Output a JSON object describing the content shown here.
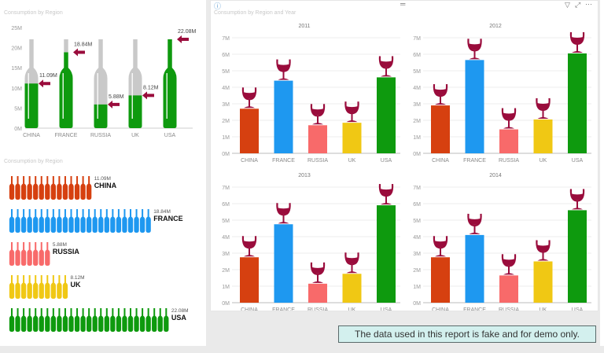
{
  "bottle_chart": {
    "title": "Consumption by Region",
    "y_ticks": [
      "0M",
      "5M",
      "10M",
      "15M",
      "20M",
      "25M"
    ],
    "categories": [
      "CHINA",
      "FRANCE",
      "RUSSIA",
      "UK",
      "USA"
    ],
    "values": [
      11.09,
      18.84,
      5.88,
      8.12,
      22.08
    ],
    "labels": [
      "11.09M",
      "18.84M",
      "5.88M",
      "8.12M",
      "22.08M"
    ],
    "fill_color": "#0e9a0e",
    "empty_color": "#c9c9c9",
    "arrow_color": "#9a0c3c"
  },
  "pictogram_chart": {
    "title": "Consumption by Region",
    "rows": [
      {
        "name": "CHINA",
        "label": "11.09M",
        "bottles": 14,
        "color": "#d64010"
      },
      {
        "name": "FRANCE",
        "label": "18.84M",
        "bottles": 24,
        "color": "#1e98f0"
      },
      {
        "name": "RUSSIA",
        "label": "5.88M",
        "bottles": 7,
        "color": "#f86a6a"
      },
      {
        "name": "UK",
        "label": "8.12M",
        "bottles": 10,
        "color": "#f0c814"
      },
      {
        "name": "USA",
        "label": "22.08M",
        "bottles": 27,
        "color": "#0e9a0e"
      }
    ]
  },
  "year_panel": {
    "title": "Consumption by Region and Year",
    "icons": {
      "info": "info-icon",
      "drag": "drag-handle-icon",
      "filter": "filter-icon",
      "focus": "focus-mode-icon",
      "more": "more-options-icon"
    }
  },
  "chart_data": [
    {
      "type": "bar",
      "title": "2011",
      "categories": [
        "CHINA",
        "FRANCE",
        "RUSSIA",
        "UK",
        "USA"
      ],
      "values": [
        2.7,
        4.4,
        1.7,
        1.85,
        4.6
      ],
      "y_ticks": [
        "0M",
        "1M",
        "2M",
        "3M",
        "4M",
        "5M",
        "6M",
        "7M"
      ],
      "ylim": [
        0,
        7
      ],
      "unit": "M",
      "grid": true
    },
    {
      "type": "bar",
      "title": "2012",
      "categories": [
        "CHINA",
        "FRANCE",
        "RUSSIA",
        "UK",
        "USA"
      ],
      "values": [
        2.9,
        5.65,
        1.45,
        2.05,
        6.05
      ],
      "y_ticks": [
        "0M",
        "1M",
        "2M",
        "3M",
        "4M",
        "5M",
        "6M",
        "7M"
      ],
      "ylim": [
        0,
        7
      ],
      "unit": "M",
      "grid": true
    },
    {
      "type": "bar",
      "title": "2013",
      "categories": [
        "CHINA",
        "FRANCE",
        "RUSSIA",
        "UK",
        "USA"
      ],
      "values": [
        2.75,
        4.75,
        1.15,
        1.75,
        5.9
      ],
      "y_ticks": [
        "0M",
        "1M",
        "2M",
        "3M",
        "4M",
        "5M",
        "6M",
        "7M"
      ],
      "ylim": [
        0,
        7
      ],
      "unit": "M",
      "grid": true
    },
    {
      "type": "bar",
      "title": "2014",
      "categories": [
        "CHINA",
        "FRANCE",
        "RUSSIA",
        "UK",
        "USA"
      ],
      "values": [
        2.75,
        4.1,
        1.65,
        2.5,
        5.6
      ],
      "y_ticks": [
        "0M",
        "1M",
        "2M",
        "3M",
        "4M",
        "5M",
        "6M",
        "7M"
      ],
      "ylim": [
        0,
        7
      ],
      "unit": "M",
      "grid": true
    }
  ],
  "colors": {
    "CHINA": "#d64010",
    "FRANCE": "#1e98f0",
    "RUSSIA": "#f86a6a",
    "UK": "#f0c814",
    "USA": "#0e9a0e",
    "glass": "#9a0c3c"
  },
  "note": "The data used in this report is fake and for demo only."
}
